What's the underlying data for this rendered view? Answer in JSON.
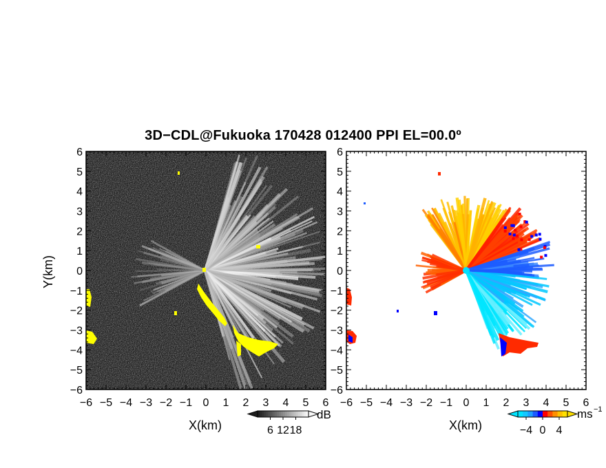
{
  "title": "3D−CDL@Fukuoka 170428 012400 PPI EL=00.0º",
  "chart_data": [
    {
      "type": "heatmap",
      "name": "reflectivity-panel",
      "xlabel": "X(km)",
      "ylabel": "Y(km)",
      "xlim": [
        -6,
        6
      ],
      "ylim": [
        -6,
        6
      ],
      "xticks": [
        "−6",
        "−5",
        "−4",
        "−3",
        "−2",
        "−1",
        "0",
        "1",
        "2",
        "3",
        "4",
        "5",
        "6"
      ],
      "yticks": [
        "6",
        "5",
        "4",
        "3",
        "2",
        "1",
        "0",
        "−1",
        "−2",
        "−3",
        "−4",
        "−5",
        "−6"
      ],
      "colorbar": {
        "unit": "dB",
        "ticks": [
          "6",
          "12",
          "18"
        ],
        "range": [
          0,
          24
        ]
      },
      "highlight_color": "#ffff00"
    },
    {
      "type": "heatmap",
      "name": "doppler-velocity-panel",
      "xlabel": "X(km)",
      "xlim": [
        -6,
        6
      ],
      "ylim": [
        -6,
        6
      ],
      "xticks": [
        "−6",
        "−5",
        "−4",
        "−3",
        "−2",
        "−1",
        "0",
        "1",
        "2",
        "3",
        "4",
        "5",
        "6"
      ],
      "yticks": [
        "6",
        "5",
        "4",
        "3",
        "2",
        "1",
        "0",
        "−1",
        "−2",
        "−3",
        "−4",
        "−5",
        "−6"
      ],
      "colorbar": {
        "unit": "ms",
        "unit_exponent": "−1",
        "ticks": [
          "−4",
          "0",
          "4"
        ],
        "range": [
          -6,
          6
        ]
      },
      "colors": {
        "toward": "#00e5ff",
        "mid": "#1c5cff",
        "zero_neg": "#0000ff",
        "zero_pos": "#ff0000",
        "away": "#ffd000"
      }
    }
  ]
}
